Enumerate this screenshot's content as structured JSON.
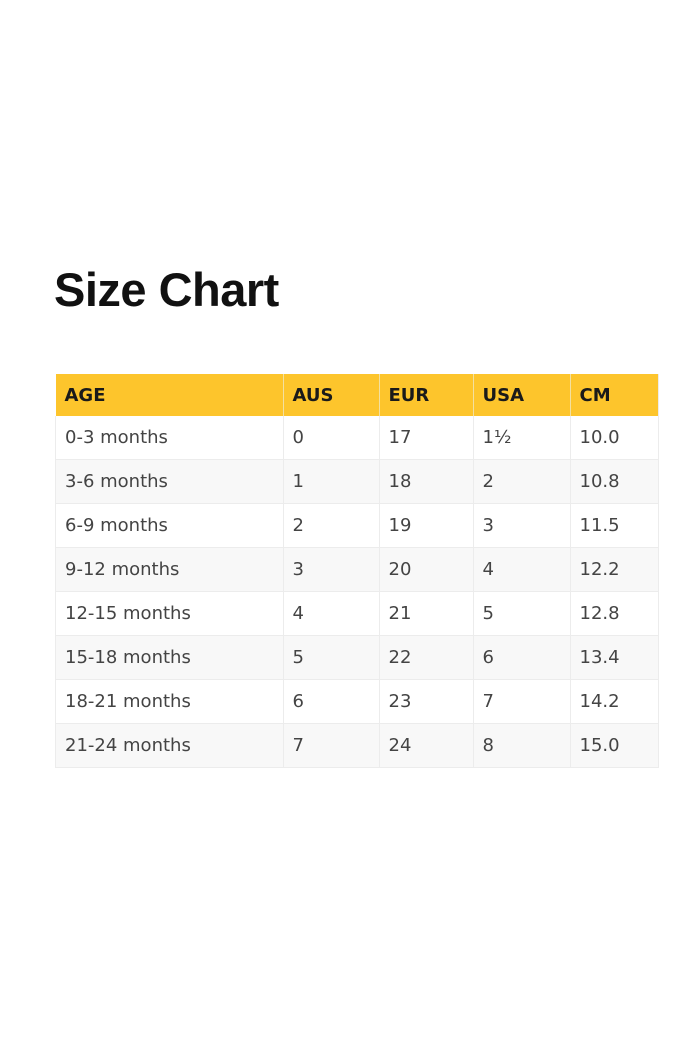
{
  "title": "Size Chart",
  "colors": {
    "header_bg": "#fdc52c"
  },
  "table": {
    "headers": [
      "AGE",
      "AUS",
      "EUR",
      "USA",
      "CM"
    ],
    "rows": [
      [
        "0-3 months",
        "0",
        "17",
        "1½",
        "10.0"
      ],
      [
        "3-6 months",
        "1",
        "18",
        "2",
        "10.8"
      ],
      [
        "6-9 months",
        "2",
        "19",
        "3",
        "11.5"
      ],
      [
        "9-12 months",
        "3",
        "20",
        "4",
        "12.2"
      ],
      [
        "12-15 months",
        "4",
        "21",
        "5",
        "12.8"
      ],
      [
        "15-18 months",
        "5",
        "22",
        "6",
        "13.4"
      ],
      [
        "18-21 months",
        "6",
        "23",
        "7",
        "14.2"
      ],
      [
        "21-24 months",
        "7",
        "24",
        "8",
        "15.0"
      ]
    ]
  }
}
